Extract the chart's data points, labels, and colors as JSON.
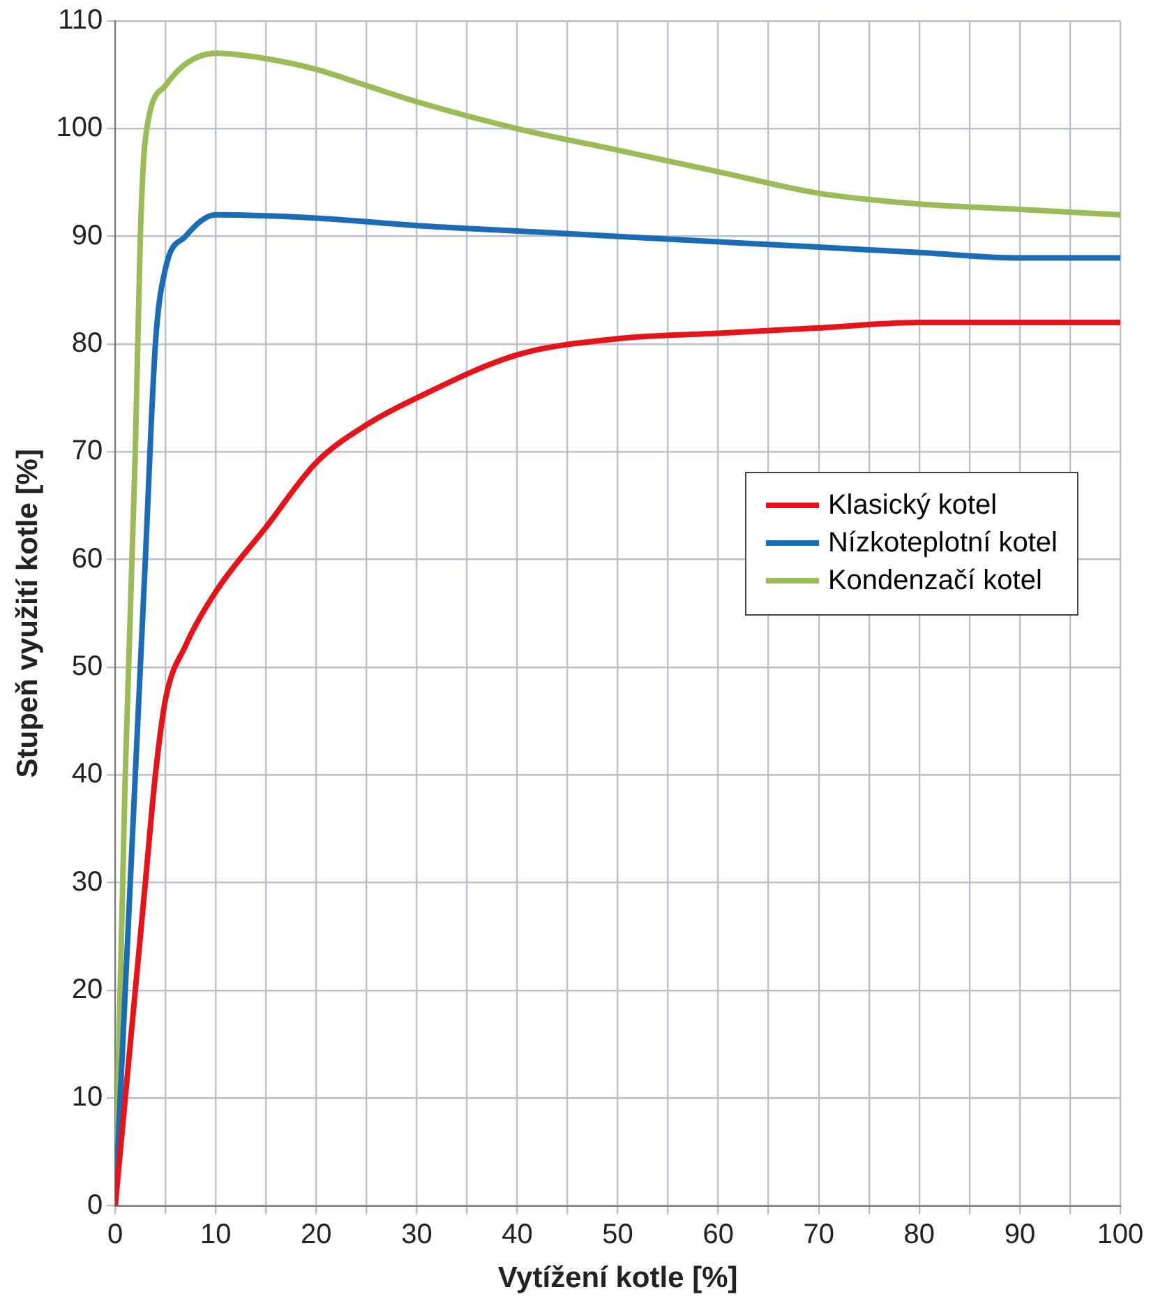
{
  "chart_data": {
    "type": "line",
    "xlabel": "Vytížení kotle [%]",
    "ylabel": "Stupeň využití kotle [%]",
    "xlim": [
      0,
      100
    ],
    "xticks": [
      0,
      {
        "value": 5,
        "label": null
      },
      10,
      {
        "value": 15,
        "label": null
      },
      20,
      {
        "value": 25,
        "label": null
      },
      30,
      {
        "value": 35,
        "label": null
      },
      40,
      {
        "value": 45,
        "label": null
      },
      50,
      {
        "value": 55,
        "label": null
      },
      60,
      {
        "value": 65,
        "label": null
      },
      70,
      {
        "value": 75,
        "label": null
      },
      80,
      {
        "value": 85,
        "label": null
      },
      90,
      {
        "value": 95,
        "label": null
      },
      100
    ],
    "ylim": [
      0,
      110
    ],
    "yticks": [
      0,
      10,
      20,
      30,
      40,
      50,
      60,
      70,
      80,
      90,
      100,
      110
    ],
    "grid": true,
    "legend": "right",
    "marker": "none",
    "line_style": "solid",
    "series": [
      {
        "name": "Klasický kotel",
        "color": "#e3151b",
        "x": [
          0,
          2,
          3,
          4,
          5,
          7,
          10,
          15,
          20,
          25,
          30,
          40,
          50,
          60,
          70,
          80,
          90,
          100
        ],
        "values": [
          0,
          20,
          30,
          40,
          47,
          52,
          57,
          63,
          69,
          72.5,
          75,
          79,
          80.5,
          81,
          81.5,
          82,
          82,
          82
        ]
      },
      {
        "name": "Nízkoteplotní kotel",
        "color": "#1b6cb5",
        "x": [
          0,
          2,
          3,
          4,
          5,
          7,
          10,
          20,
          30,
          40,
          50,
          60,
          70,
          80,
          90,
          100
        ],
        "values": [
          0,
          40,
          60,
          80,
          87,
          90,
          92,
          91.7,
          91,
          90.5,
          90,
          89.5,
          89,
          88.5,
          88,
          88
        ]
      },
      {
        "name": "Kondenzačí kotel",
        "color": "#9bbb59",
        "x": [
          0,
          1,
          2,
          2.5,
          3,
          5,
          7,
          10,
          15,
          20,
          25,
          30,
          40,
          50,
          60,
          70,
          80,
          90,
          100
        ],
        "values": [
          0,
          40,
          70,
          90,
          99,
          104,
          106,
          107,
          106.5,
          105.5,
          104,
          102.5,
          100,
          98,
          96,
          94,
          93,
          92.5,
          92
        ]
      }
    ]
  }
}
